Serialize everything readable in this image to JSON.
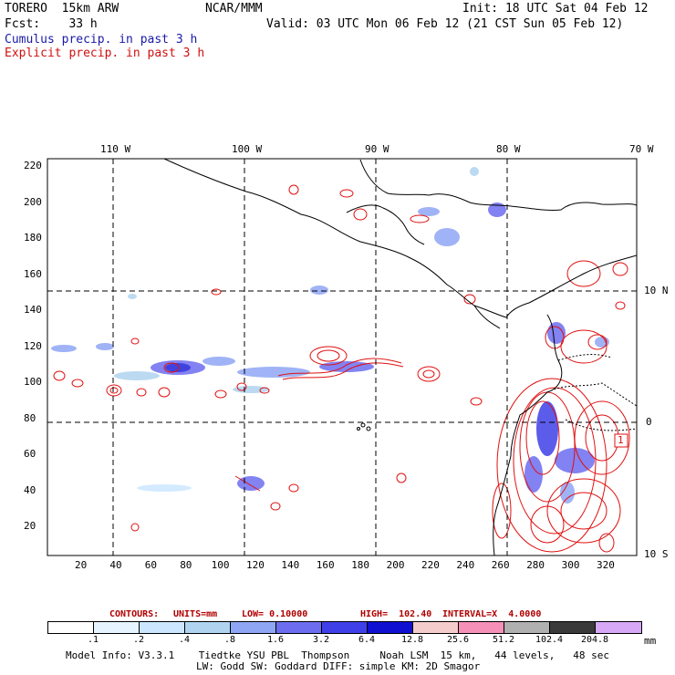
{
  "header": {
    "model": "TORERO  15km ARW",
    "center": "NCAR/MMM",
    "init": "Init: 18 UTC Sat 04 Feb 12",
    "fcst": "Fcst:    33 h",
    "valid": "Valid: 03 UTC Mon 06 Feb 12 (21 CST Sun 05 Feb 12)",
    "cumulus": "Cumulus precip. in past 3 h",
    "explicit": "Explicit precip. in past 3 h"
  },
  "map": {
    "lon_labels": [
      "110 W",
      "100 W",
      "90 W",
      "80 W",
      "70 W"
    ],
    "lat_labels": [
      "10 N",
      "0",
      "10 S"
    ],
    "y_ticks": [
      "220",
      "200",
      "180",
      "160",
      "140",
      "120",
      "100",
      "80",
      "60",
      "40",
      "20"
    ],
    "x_ticks": [
      "20",
      "40",
      "60",
      "80",
      "100",
      "120",
      "140",
      "160",
      "180",
      "200",
      "220",
      "240",
      "260",
      "280",
      "300",
      "320"
    ],
    "marker": "1"
  },
  "contours": {
    "label": "CONTOURS:",
    "units": "UNITS=mm",
    "low": "LOW= 0.10000",
    "high": "HIGH=  102.40",
    "interval": "INTERVAL=X  4.0000"
  },
  "colorbar": {
    "labels": [
      ".1",
      ".2",
      ".4",
      ".8",
      "1.6",
      "3.2",
      "6.4",
      "12.8",
      "25.6",
      "51.2",
      "102.4",
      "204.8"
    ],
    "colors": [
      "#ffffff",
      "#e6f4ff",
      "#cce6ff",
      "#b0d4f0",
      "#8fa6f5",
      "#6d6df0",
      "#4040e8",
      "#1010d0",
      "#f5cccc",
      "#f590b8",
      "#b0b0b0",
      "#3a3a3a",
      "#d6a8f5"
    ],
    "unit": "mm"
  },
  "footer": {
    "line1": "Model Info: V3.3.1    Tiedtke YSU PBL  Thompson     Noah LSM  15 km,   44 levels,   48 sec",
    "line2": "LW: Godd SW: Goddard DIFF: simple KM: 2D Smagor"
  }
}
